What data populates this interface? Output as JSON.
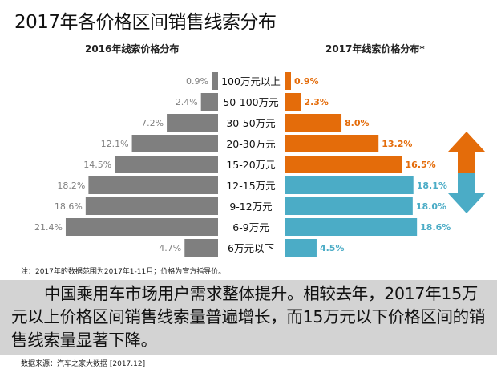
{
  "title": "2017年各价格区间销售线索分布",
  "chart_data": {
    "type": "bar",
    "orientation": "horizontal-butterfly",
    "categories": [
      "100万元以上",
      "50-100万元",
      "30-50万元",
      "20-30万元",
      "15-20万元",
      "12-15万元",
      "9-12万元",
      "6-9万元",
      "6万元以下"
    ],
    "series": [
      {
        "name": "2016年线索价格分布",
        "values": [
          0.9,
          2.4,
          7.2,
          12.1,
          14.5,
          18.2,
          18.6,
          21.4,
          4.7
        ],
        "labels": [
          "0.9%",
          "2.4%",
          "7.2%",
          "12.1%",
          "14.5%",
          "18.2%",
          "18.6%",
          "21.4%",
          "4.7%"
        ],
        "color": "#7f7f7f"
      },
      {
        "name": "2017年线索价格分布*",
        "values": [
          0.9,
          2.3,
          8.0,
          13.2,
          16.5,
          18.1,
          18.0,
          18.6,
          4.5
        ],
        "labels": [
          "0.9%",
          "2.3%",
          "8.0%",
          "13.2%",
          "16.5%",
          "18.1%",
          "18.0%",
          "18.6%",
          "4.5%"
        ],
        "colors": [
          "#e46c0a",
          "#e46c0a",
          "#e46c0a",
          "#e46c0a",
          "#e46c0a",
          "#4bacc6",
          "#4bacc6",
          "#4bacc6",
          "#4bacc6"
        ]
      }
    ],
    "unit": "%",
    "grid": false,
    "legend": "none",
    "arrow_colors": {
      "up": "#e46c0a",
      "down": "#4bacc6"
    }
  },
  "note": "注：2017年的数据范围为2017年1-11月；价格为官方指导价。",
  "summary": "中国乘用车市场用户需求整体提升。相较去年，2017年15万元以上价格区间销售线索量普遍增长，而15万元以下价格区间的销售线索量显著下降。",
  "source": "数据来源：汽车之家大数据 [2017.12]"
}
